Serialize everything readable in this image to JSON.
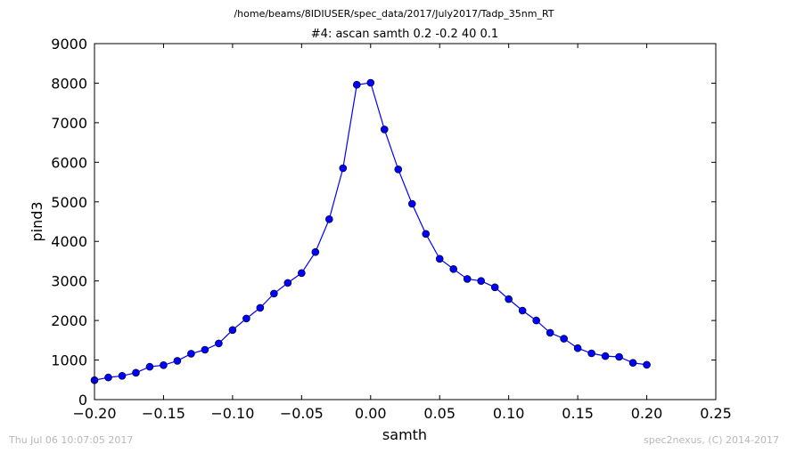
{
  "suptitle": "/home/beams/8IDIUSER/spec_data/2017/July2017/Tadp_35nm_RT",
  "footer_left": "Thu Jul 06 10:07:05 2017",
  "footer_right": "spec2nexus, (C) 2014-2017",
  "chart_data": {
    "type": "line",
    "title": "#4: ascan  samth 0.2 -0.2  40 0.1",
    "xlabel": "samth",
    "ylabel": "pind3",
    "xlim": [
      -0.2,
      0.25
    ],
    "ylim": [
      0,
      9000
    ],
    "x_ticks": [
      -0.2,
      -0.15,
      -0.1,
      -0.05,
      0.0,
      0.05,
      0.1,
      0.15,
      0.2,
      0.25
    ],
    "x_tick_labels": [
      "−0.20",
      "−0.15",
      "−0.10",
      "−0.05",
      "0.00",
      "0.05",
      "0.10",
      "0.15",
      "0.20",
      "0.25"
    ],
    "y_ticks": [
      0,
      1000,
      2000,
      3000,
      4000,
      5000,
      6000,
      7000,
      8000,
      9000
    ],
    "y_tick_labels": [
      "0",
      "1000",
      "2000",
      "3000",
      "4000",
      "5000",
      "6000",
      "7000",
      "8000",
      "9000"
    ],
    "grid": false,
    "line_color": "#0000ff",
    "marker": "circle",
    "x": [
      -0.2,
      -0.19,
      -0.18,
      -0.17,
      -0.16,
      -0.15,
      -0.14,
      -0.13,
      -0.12,
      -0.11,
      -0.1,
      -0.09,
      -0.08,
      -0.07,
      -0.06,
      -0.05,
      -0.04,
      -0.03,
      -0.02,
      -0.01,
      0.0,
      0.01,
      0.02,
      0.03,
      0.04,
      0.05,
      0.06,
      0.07,
      0.08,
      0.09,
      0.1,
      0.11,
      0.12,
      0.13,
      0.14,
      0.15,
      0.16,
      0.17,
      0.18,
      0.19,
      0.2
    ],
    "y": [
      490,
      560,
      600,
      680,
      830,
      870,
      980,
      1160,
      1260,
      1420,
      1760,
      2050,
      2320,
      2680,
      2950,
      3200,
      3730,
      4560,
      5850,
      7960,
      8010,
      6830,
      5820,
      4950,
      4190,
      3560,
      3300,
      3050,
      3000,
      2840,
      2540,
      2250,
      2000,
      1690,
      1540,
      1300,
      1170,
      1100,
      1080,
      930,
      880
    ]
  }
}
